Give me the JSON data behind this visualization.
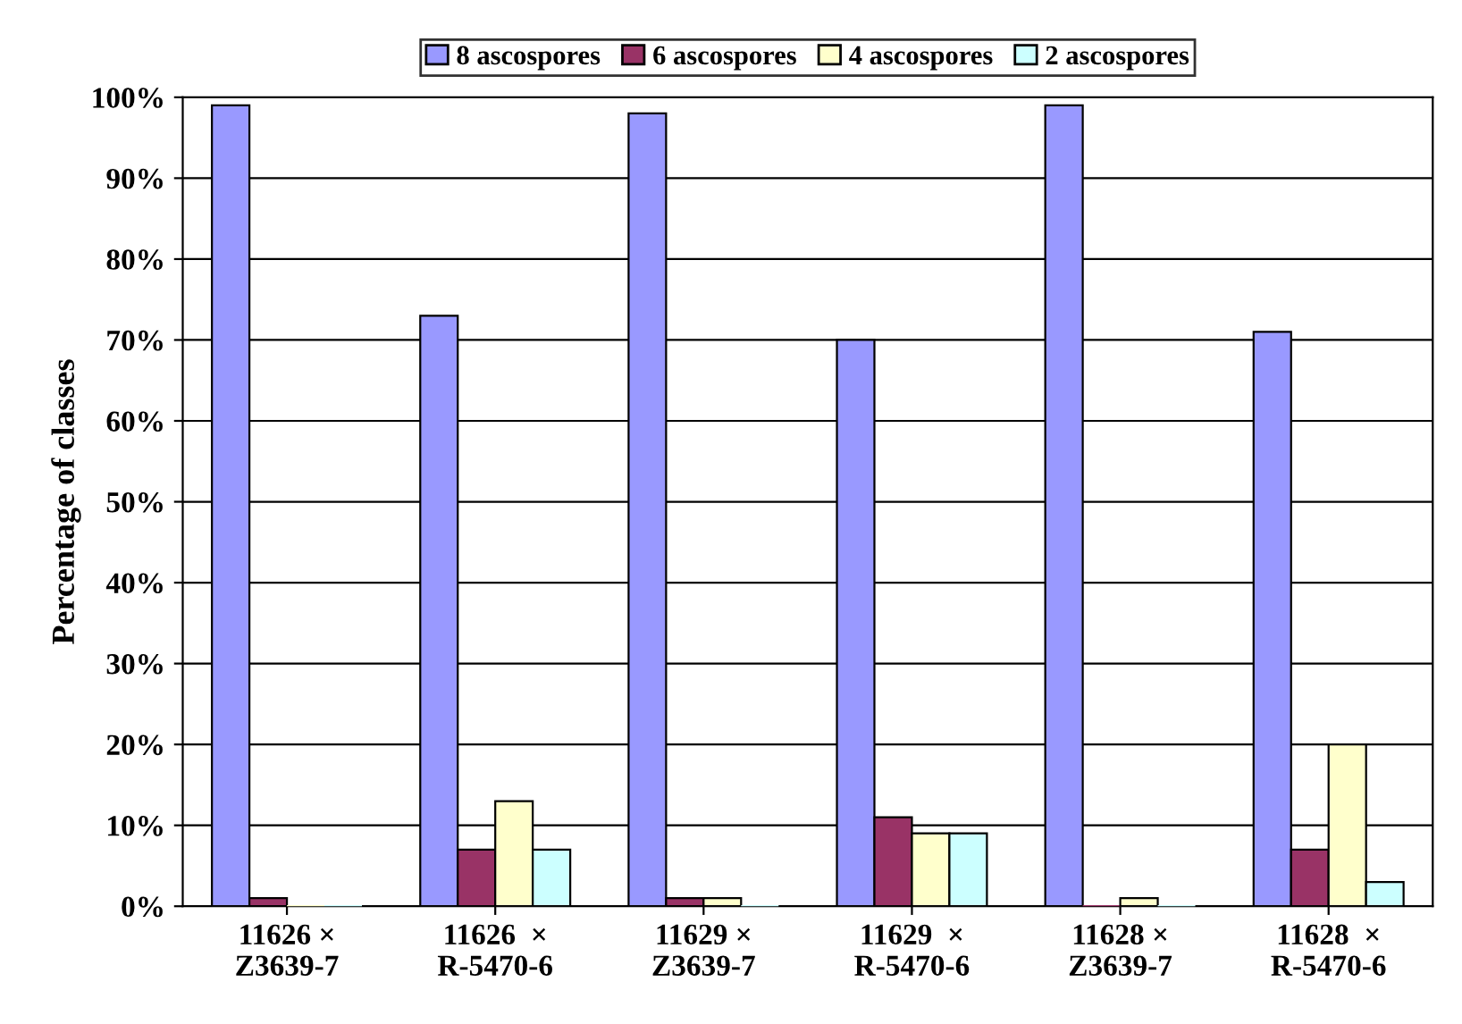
{
  "chart_data": {
    "type": "bar",
    "ylabel": "Percentage of classes",
    "categories": [
      "11626 ×\nZ3639-7",
      "11626  ×\nR-5470-6",
      "11629 ×\nZ3639-7",
      "11629  ×\nR-5470-6",
      "11628 ×\nZ3639-7",
      "11628  ×\nR-5470-6"
    ],
    "series": [
      {
        "name": "8 ascospores",
        "color": "#9999ff",
        "values": [
          99,
          73,
          98,
          70,
          99,
          71
        ]
      },
      {
        "name": "6 ascospores",
        "color": "#993366",
        "values": [
          1,
          7,
          1,
          11,
          0,
          7
        ]
      },
      {
        "name": "4 ascospores",
        "color": "#ffffcc",
        "values": [
          0,
          13,
          1,
          9,
          1,
          20
        ]
      },
      {
        "name": "2 ascospores",
        "color": "#ccffff",
        "values": [
          0,
          7,
          0,
          9,
          0,
          3
        ]
      }
    ],
    "ylim": [
      0,
      100
    ],
    "yticks": [
      {
        "value": 0,
        "label": "0%"
      },
      {
        "value": 10,
        "label": "10%"
      },
      {
        "value": 20,
        "label": "20%"
      },
      {
        "value": 30,
        "label": "30%"
      },
      {
        "value": 40,
        "label": "40%"
      },
      {
        "value": 50,
        "label": "50%"
      },
      {
        "value": 60,
        "label": "60%"
      },
      {
        "value": 70,
        "label": "70%"
      },
      {
        "value": 80,
        "label": "80%"
      },
      {
        "value": 90,
        "label": "90%"
      },
      {
        "value": 100,
        "label": "100%"
      }
    ],
    "grid": "y",
    "legend": "top"
  }
}
